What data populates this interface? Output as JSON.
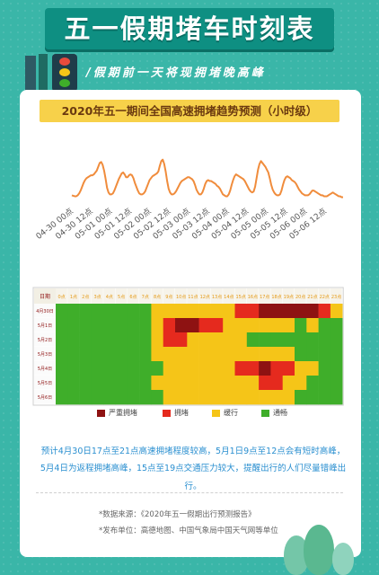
{
  "page": {
    "title": "五一假期堵车时刻表",
    "subtitle": "/假期前一天将现拥堵晚高峰"
  },
  "chart_data": [
    {
      "type": "line",
      "title": "2020年五一期间全国高速拥堵趋势预测（小时级）",
      "x_tick_labels": [
        "04-30 00点",
        "04-30 12点",
        "05-01 00点",
        "05-01 12点",
        "05-02 00点",
        "05-02 12点",
        "05-03 00点",
        "05-03 12点",
        "05-04 00点",
        "05-04 12点",
        "05-05 00点",
        "05-05 12点",
        "05-06 00点",
        "05-06 12点"
      ],
      "color": "#f08c3c",
      "values": [
        0.2,
        0.19,
        0.18,
        0.18,
        0.2,
        0.24,
        0.3,
        0.38,
        0.46,
        0.52,
        0.56,
        0.58,
        0.6,
        0.62,
        0.62,
        0.64,
        0.68,
        0.72,
        0.8,
        0.88,
        0.9,
        0.84,
        0.72,
        0.55,
        0.36,
        0.26,
        0.22,
        0.22,
        0.24,
        0.3,
        0.38,
        0.46,
        0.54,
        0.6,
        0.66,
        0.68,
        0.64,
        0.58,
        0.58,
        0.62,
        0.64,
        0.62,
        0.56,
        0.46,
        0.38,
        0.3,
        0.24,
        0.22,
        0.22,
        0.24,
        0.28,
        0.36,
        0.44,
        0.52,
        0.56,
        0.6,
        0.62,
        0.64,
        0.66,
        0.7,
        0.82,
        0.92,
        0.95,
        0.86,
        0.7,
        0.5,
        0.34,
        0.26,
        0.22,
        0.22,
        0.24,
        0.28,
        0.34,
        0.4,
        0.46,
        0.5,
        0.52,
        0.54,
        0.56,
        0.58,
        0.58,
        0.56,
        0.54,
        0.5,
        0.42,
        0.32,
        0.26,
        0.22,
        0.22,
        0.26,
        0.34,
        0.44,
        0.5,
        0.52,
        0.5,
        0.5,
        0.48,
        0.46,
        0.44,
        0.4,
        0.38,
        0.34,
        0.28,
        0.22,
        0.2,
        0.18,
        0.18,
        0.22,
        0.3,
        0.42,
        0.52,
        0.6,
        0.64,
        0.62,
        0.6,
        0.58,
        0.56,
        0.54,
        0.5,
        0.44,
        0.38,
        0.32,
        0.28,
        0.26,
        0.28,
        0.38,
        0.56,
        0.74,
        0.86,
        0.92,
        0.88,
        0.84,
        0.8,
        0.74,
        0.68,
        0.56,
        0.42,
        0.32,
        0.26,
        0.22,
        0.2,
        0.2,
        0.22,
        0.3,
        0.42,
        0.52,
        0.58,
        0.6,
        0.58,
        0.56,
        0.52,
        0.5,
        0.48,
        0.44,
        0.38,
        0.32,
        0.28,
        0.24,
        0.22,
        0.2,
        0.2,
        0.2,
        0.22,
        0.26,
        0.3,
        0.3,
        0.28,
        0.26,
        0.24,
        0.22,
        0.2,
        0.2,
        0.18,
        0.18,
        0.18,
        0.2,
        0.22,
        0.24,
        0.26,
        0.24,
        0.22,
        0.2,
        0.18,
        0.18,
        0.16,
        0.16
      ]
    },
    {
      "type": "heatmap",
      "corner_label": "日期",
      "columns": [
        "0点",
        "1点",
        "2点",
        "3点",
        "4点",
        "5点",
        "6点",
        "7点",
        "8点",
        "9点",
        "10点",
        "11点",
        "12点",
        "13点",
        "14点",
        "15点",
        "16点",
        "17点",
        "18点",
        "19点",
        "20点",
        "21点",
        "22点",
        "23点"
      ],
      "rows": [
        "4月30日",
        "5月1日",
        "5月2日",
        "5月3日",
        "5月4日",
        "5月5日",
        "5月6日"
      ],
      "levels": [
        "严重拥堵",
        "拥堵",
        "缓行",
        "通畅"
      ],
      "level_colors": [
        "#8e1212",
        "#e52a1e",
        "#f5c518",
        "#3fae2a"
      ],
      "cells": [
        [
          3,
          3,
          3,
          3,
          3,
          3,
          3,
          3,
          2,
          2,
          2,
          2,
          2,
          2,
          2,
          1,
          1,
          0,
          0,
          0,
          0,
          0,
          1,
          2
        ],
        [
          3,
          3,
          3,
          3,
          3,
          3,
          3,
          3,
          2,
          1,
          0,
          0,
          1,
          1,
          2,
          2,
          2,
          2,
          2,
          2,
          3,
          2,
          3,
          3
        ],
        [
          3,
          3,
          3,
          3,
          3,
          3,
          3,
          3,
          2,
          1,
          1,
          2,
          2,
          2,
          2,
          2,
          3,
          3,
          3,
          3,
          3,
          3,
          3,
          3
        ],
        [
          3,
          3,
          3,
          3,
          3,
          3,
          3,
          3,
          2,
          2,
          2,
          2,
          2,
          2,
          2,
          2,
          2,
          2,
          2,
          2,
          3,
          3,
          3,
          3
        ],
        [
          3,
          3,
          3,
          3,
          3,
          3,
          3,
          3,
          3,
          2,
          2,
          2,
          2,
          2,
          2,
          1,
          1,
          0,
          1,
          1,
          2,
          2,
          3,
          3
        ],
        [
          3,
          3,
          3,
          3,
          3,
          3,
          3,
          3,
          2,
          2,
          2,
          2,
          2,
          2,
          2,
          2,
          2,
          1,
          1,
          2,
          2,
          3,
          3,
          3
        ],
        [
          3,
          3,
          3,
          3,
          3,
          3,
          3,
          3,
          3,
          2,
          2,
          2,
          2,
          2,
          2,
          2,
          2,
          2,
          2,
          2,
          3,
          3,
          3,
          3
        ]
      ]
    }
  ],
  "note": {
    "line1": "预计4月30日17点至21点高速拥堵程度较高，5月1日9点至12点会有短时高峰，",
    "line2": "5月4日为返程拥堵高峰，15点至19点交通压力较大，提醒出行的人们尽量错峰出行。"
  },
  "source": {
    "line1": "*数据来源：《2020年五一假期出行预测报告》",
    "line2": "*发布单位：高德地图、中国气象局中国天气网等单位"
  }
}
